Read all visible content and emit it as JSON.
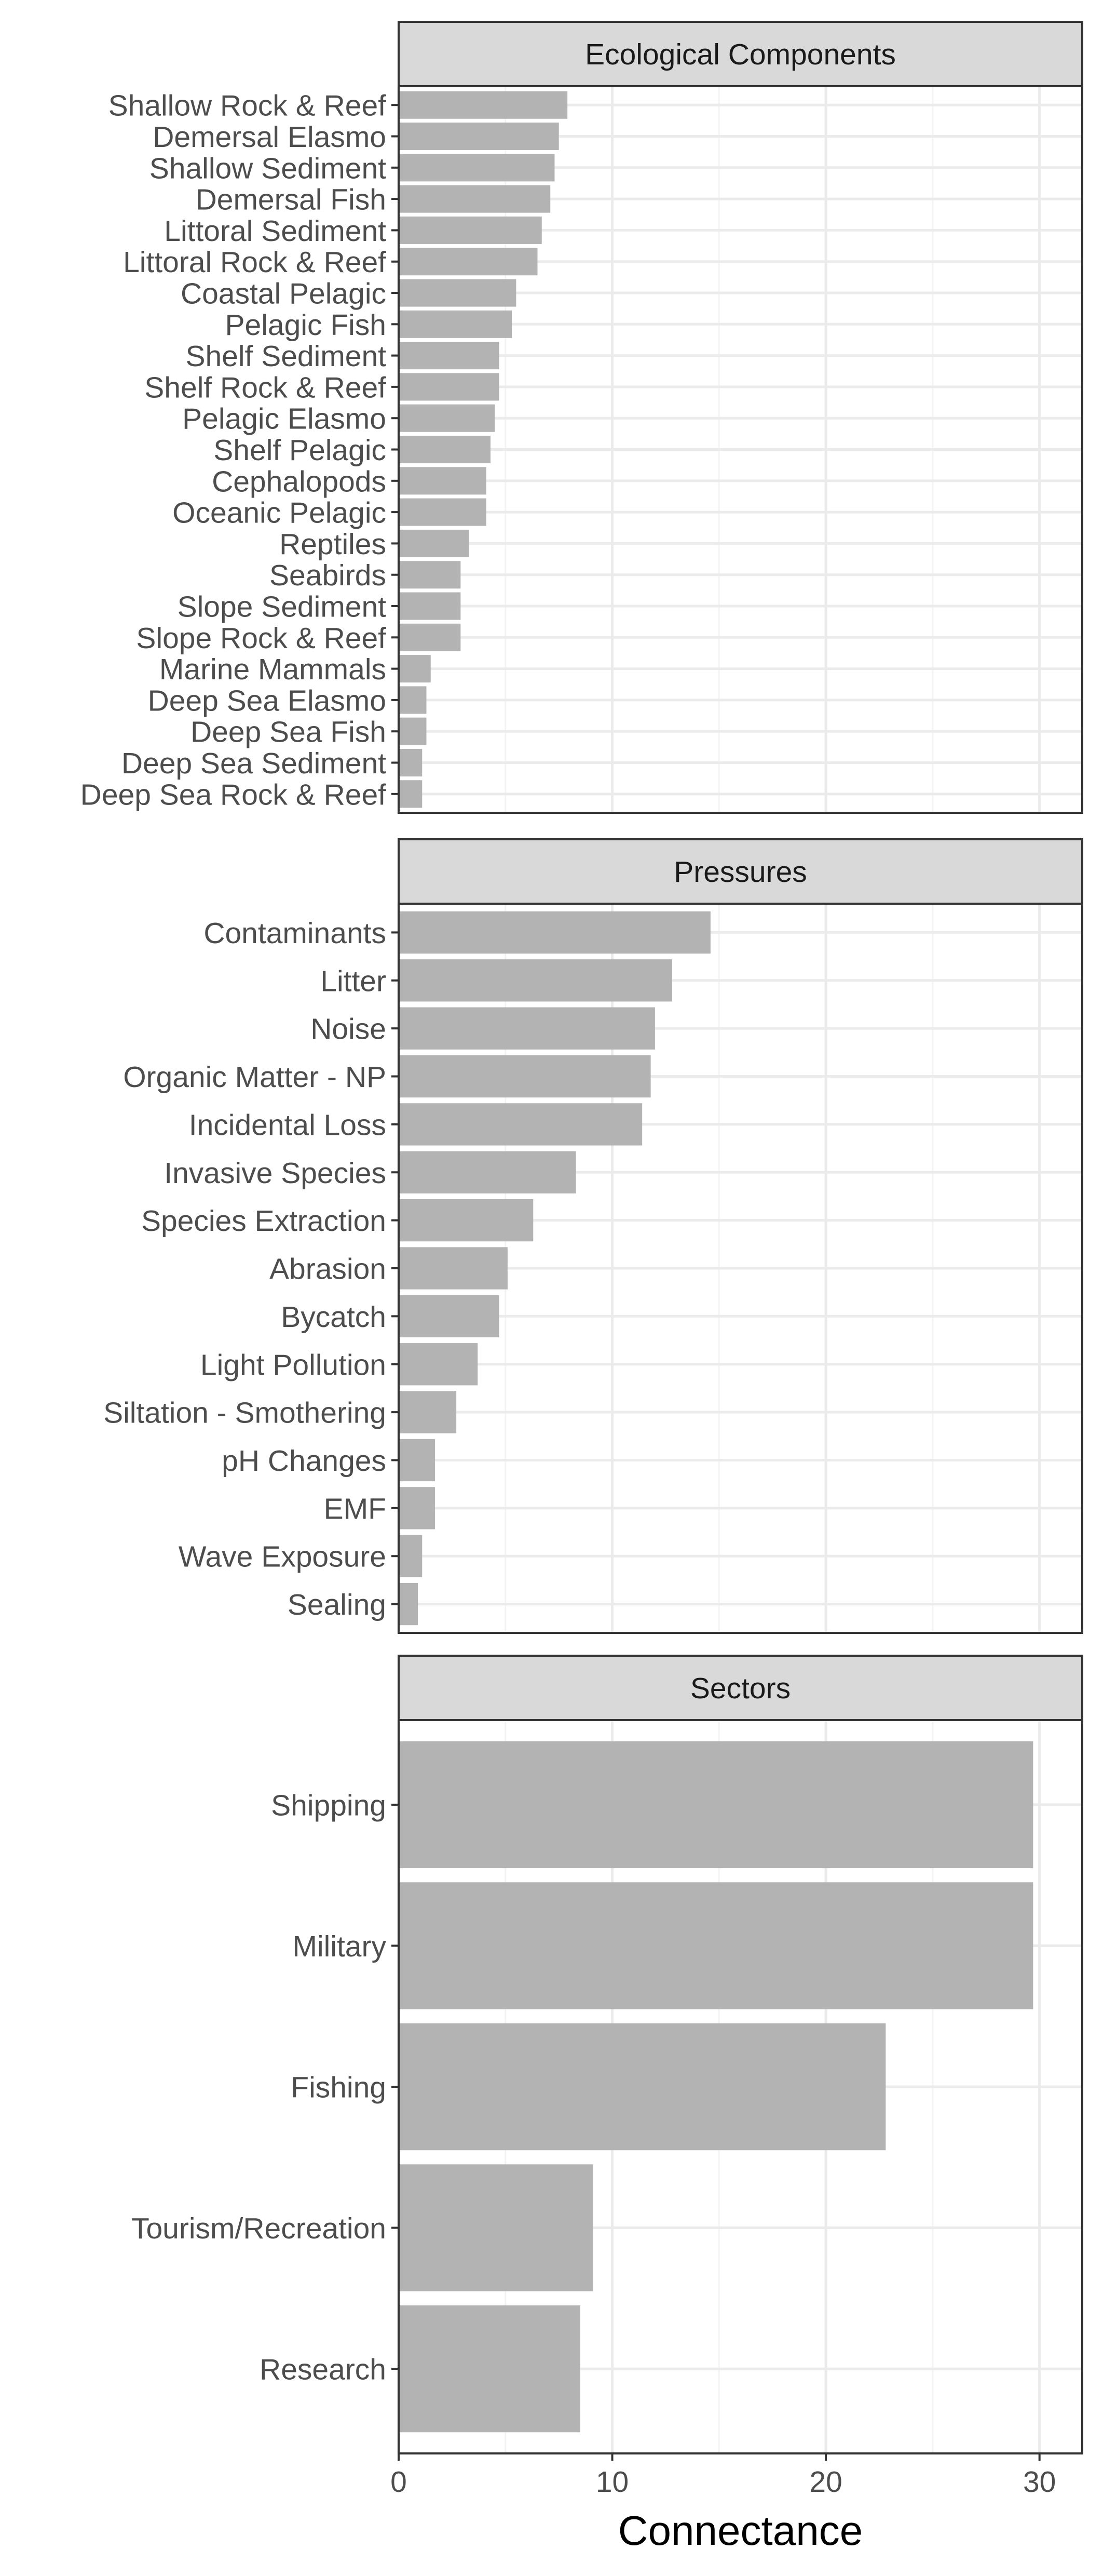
{
  "chart_data": [
    {
      "type": "bar",
      "orientation": "horizontal",
      "title": "Ecological Components",
      "categories": [
        "Shallow Rock & Reef",
        "Demersal Elasmo",
        "Shallow Sediment",
        "Demersal Fish",
        "Littoral Sediment",
        "Littoral Rock & Reef",
        "Coastal Pelagic",
        "Pelagic Fish",
        "Shelf Sediment",
        "Shelf Rock & Reef",
        "Pelagic Elasmo",
        "Shelf Pelagic",
        "Cephalopods",
        "Oceanic Pelagic",
        "Reptiles",
        "Seabirds",
        "Slope Sediment",
        "Slope Rock & Reef",
        "Marine Mammals",
        "Deep Sea Elasmo",
        "Deep Sea Fish",
        "Deep Sea Sediment",
        "Deep Sea Rock & Reef"
      ],
      "values": [
        7.9,
        7.5,
        7.3,
        7.1,
        6.7,
        6.5,
        5.5,
        5.3,
        4.7,
        4.7,
        4.5,
        4.3,
        4.1,
        4.1,
        3.3,
        2.9,
        2.9,
        2.9,
        1.5,
        1.3,
        1.3,
        1.1,
        1.1
      ],
      "xlim": [
        0,
        32
      ],
      "grid": true
    },
    {
      "type": "bar",
      "orientation": "horizontal",
      "title": "Pressures",
      "categories": [
        "Contaminants",
        "Litter",
        "Noise",
        "Organic Matter - NP",
        "Incidental Loss",
        "Invasive Species",
        "Species Extraction",
        "Abrasion",
        "Bycatch",
        "Light Pollution",
        "Siltation - Smothering",
        "pH Changes",
        "EMF",
        "Wave Exposure",
        "Sealing"
      ],
      "values": [
        14.6,
        12.8,
        12.0,
        11.8,
        11.4,
        8.3,
        6.3,
        5.1,
        4.7,
        3.7,
        2.7,
        1.7,
        1.7,
        1.1,
        0.9
      ],
      "xlim": [
        0,
        32
      ],
      "grid": true
    },
    {
      "type": "bar",
      "orientation": "horizontal",
      "title": "Sectors",
      "categories": [
        "Shipping",
        "Military",
        "Fishing",
        "Tourism/Recreation",
        "Research"
      ],
      "values": [
        29.7,
        29.7,
        22.8,
        9.1,
        8.5
      ],
      "xlim": [
        0,
        32
      ],
      "grid": true
    }
  ],
  "x_axis": {
    "label": "Connectance",
    "ticks": [
      "0",
      "10",
      "20",
      "30"
    ]
  },
  "colors": {
    "bar": "#b3b3b3",
    "strip": "#d9d9d9",
    "grid_major": "#ebebeb",
    "grid_minor": "#f4f4f4",
    "border": "#333333",
    "label": "#4d4d4d"
  }
}
